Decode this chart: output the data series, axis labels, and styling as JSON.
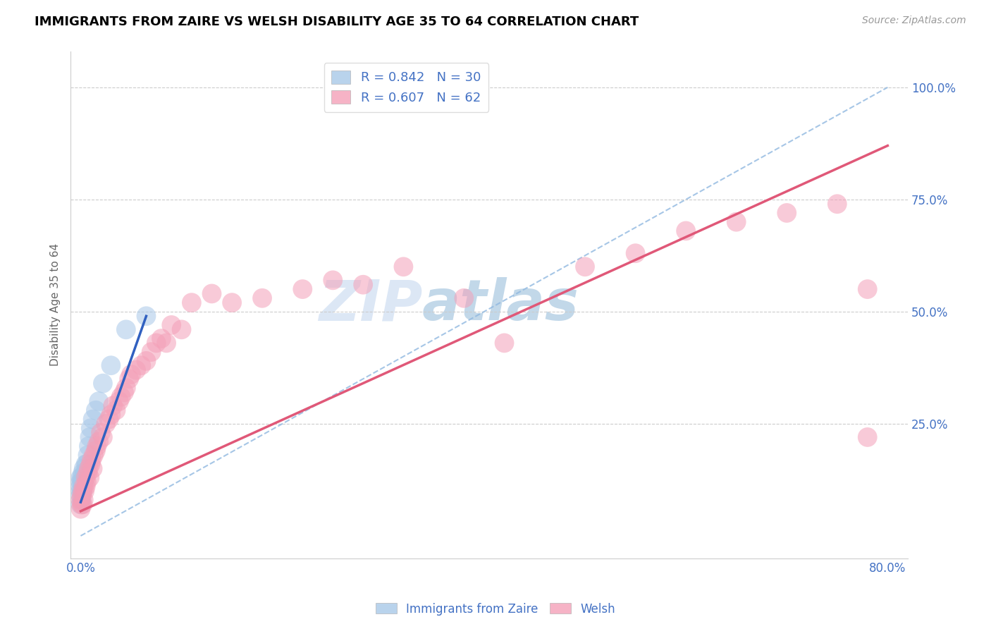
{
  "title": "IMMIGRANTS FROM ZAIRE VS WELSH DISABILITY AGE 35 TO 64 CORRELATION CHART",
  "source": "Source: ZipAtlas.com",
  "ylabel": "Disability Age 35 to 64",
  "xlim": [
    -0.01,
    0.82
  ],
  "ylim": [
    -0.05,
    1.08
  ],
  "xticks": [
    0.0,
    0.8
  ],
  "xticklabels": [
    "0.0%",
    "80.0%"
  ],
  "ytick_positions": [
    0.25,
    0.5,
    0.75,
    1.0
  ],
  "yticklabels": [
    "25.0%",
    "50.0%",
    "75.0%",
    "100.0%"
  ],
  "legend_r1": "R = 0.842",
  "legend_n1": "N = 30",
  "legend_r2": "R = 0.607",
  "legend_n2": "N = 62",
  "color_blue": "#a8c8e8",
  "color_pink": "#f4a0b8",
  "color_blue_line": "#3060c0",
  "color_pink_line": "#e05878",
  "color_dashed": "#90b8e0",
  "color_axis_labels": "#4472c4",
  "watermark_zip": "ZIP",
  "watermark_atlas": "atlas",
  "blue_points_x": [
    0.0,
    0.0,
    0.0,
    0.0,
    0.0,
    0.0,
    0.001,
    0.001,
    0.001,
    0.001,
    0.002,
    0.002,
    0.002,
    0.003,
    0.003,
    0.004,
    0.005,
    0.005,
    0.006,
    0.007,
    0.008,
    0.009,
    0.01,
    0.012,
    0.015,
    0.018,
    0.022,
    0.03,
    0.045,
    0.065
  ],
  "blue_points_y": [
    0.07,
    0.09,
    0.1,
    0.11,
    0.12,
    0.13,
    0.08,
    0.1,
    0.12,
    0.13,
    0.1,
    0.12,
    0.14,
    0.12,
    0.15,
    0.14,
    0.14,
    0.16,
    0.16,
    0.18,
    0.2,
    0.22,
    0.24,
    0.26,
    0.28,
    0.3,
    0.34,
    0.38,
    0.46,
    0.49
  ],
  "pink_points_x": [
    0.0,
    0.0,
    0.001,
    0.001,
    0.002,
    0.002,
    0.003,
    0.003,
    0.004,
    0.005,
    0.005,
    0.006,
    0.007,
    0.008,
    0.009,
    0.01,
    0.011,
    0.012,
    0.013,
    0.015,
    0.016,
    0.018,
    0.02,
    0.022,
    0.025,
    0.028,
    0.03,
    0.032,
    0.035,
    0.038,
    0.04,
    0.043,
    0.045,
    0.048,
    0.05,
    0.055,
    0.06,
    0.065,
    0.07,
    0.075,
    0.08,
    0.085,
    0.09,
    0.1,
    0.11,
    0.13,
    0.15,
    0.18,
    0.22,
    0.25,
    0.28,
    0.32,
    0.38,
    0.42,
    0.5,
    0.55,
    0.6,
    0.65,
    0.7,
    0.75,
    0.78,
    0.78
  ],
  "pink_points_y": [
    0.06,
    0.08,
    0.07,
    0.09,
    0.07,
    0.1,
    0.08,
    0.11,
    0.1,
    0.11,
    0.13,
    0.12,
    0.14,
    0.15,
    0.13,
    0.16,
    0.17,
    0.15,
    0.18,
    0.19,
    0.2,
    0.21,
    0.23,
    0.22,
    0.25,
    0.26,
    0.27,
    0.29,
    0.28,
    0.3,
    0.31,
    0.32,
    0.33,
    0.35,
    0.36,
    0.37,
    0.38,
    0.39,
    0.41,
    0.43,
    0.44,
    0.43,
    0.47,
    0.46,
    0.52,
    0.54,
    0.52,
    0.53,
    0.55,
    0.57,
    0.56,
    0.6,
    0.53,
    0.43,
    0.6,
    0.63,
    0.68,
    0.7,
    0.72,
    0.74,
    0.22,
    0.55
  ],
  "blue_line_x0": 0.0,
  "blue_line_y0": 0.075,
  "blue_line_x1": 0.065,
  "blue_line_y1": 0.49,
  "pink_line_x0": 0.0,
  "pink_line_y0": 0.055,
  "pink_line_x1": 0.8,
  "pink_line_y1": 0.87,
  "dash_line_x0": 0.0,
  "dash_line_y0": 0.0,
  "dash_line_x1": 0.8,
  "dash_line_y1": 1.0
}
